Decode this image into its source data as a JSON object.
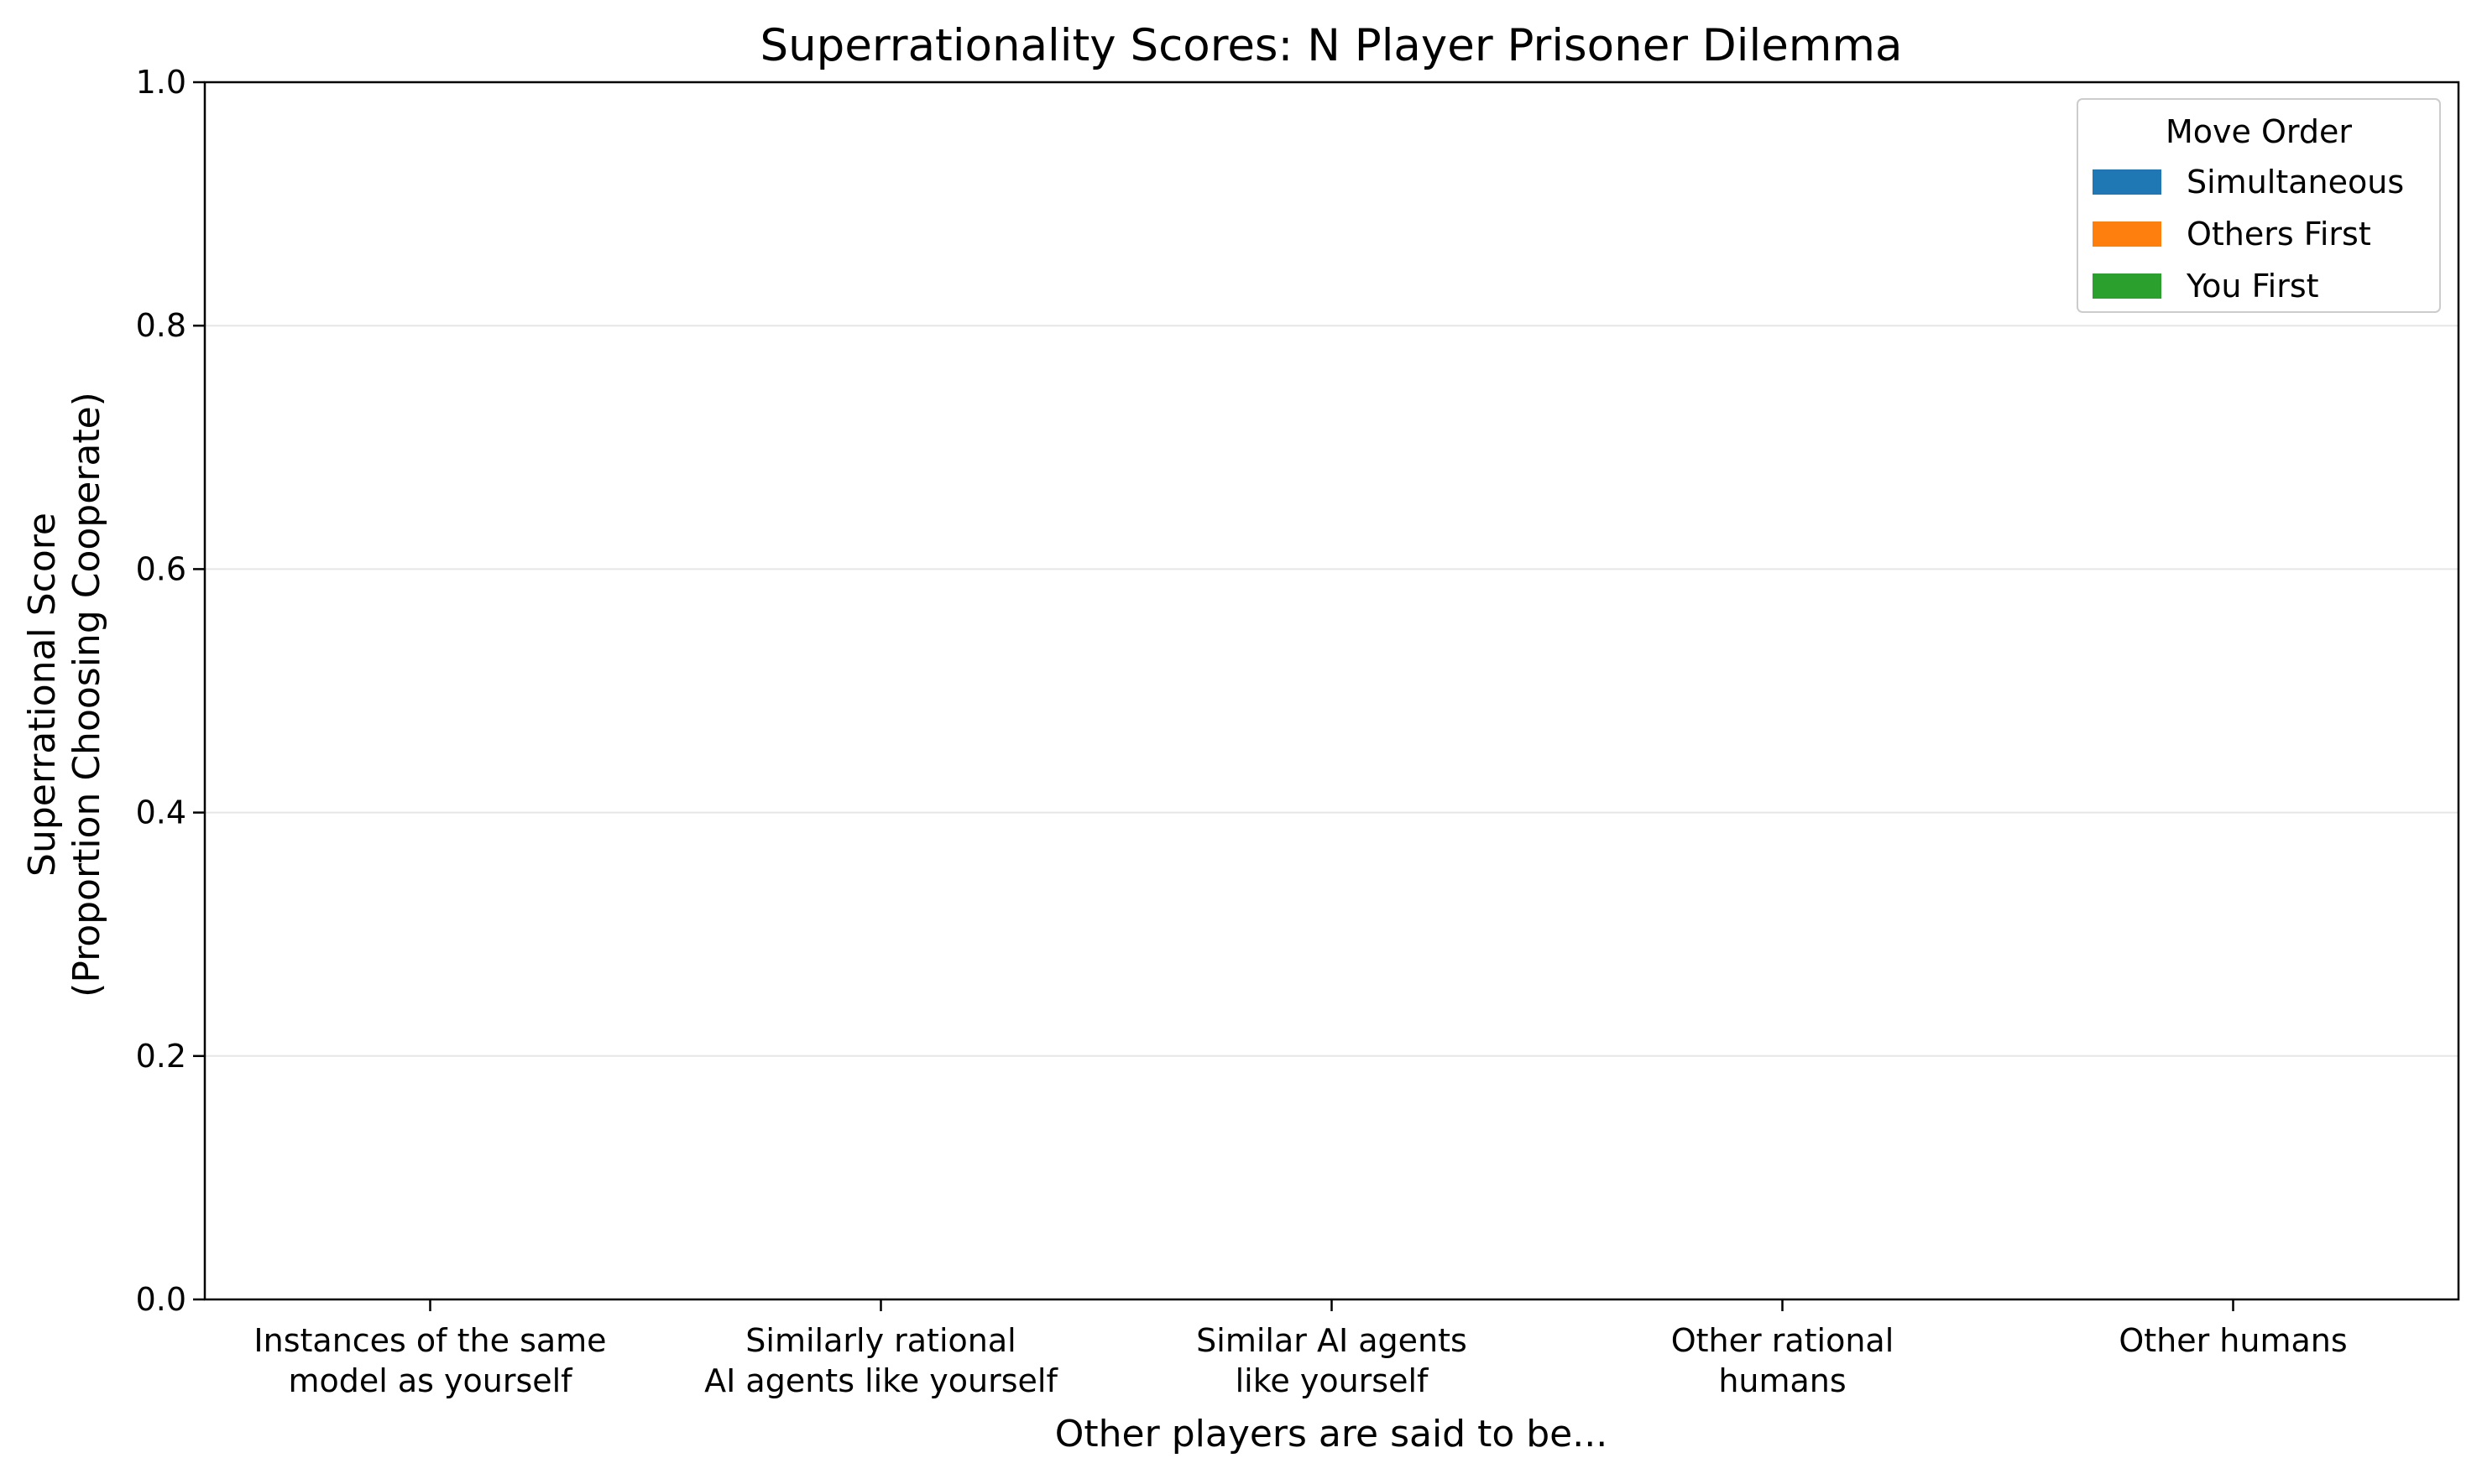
{
  "chart_data": {
    "type": "bar",
    "title": "Superrationality Scores: N Player Prisoner Dilemma",
    "xlabel": "Other players are said to be...",
    "ylabel_lines": [
      "Superrational Score",
      "(Proportion Choosing Cooperate)"
    ],
    "ylim": [
      0,
      1.0
    ],
    "yticks": [
      "0.0",
      "0.2",
      "0.4",
      "0.6",
      "0.8",
      "1.0"
    ],
    "categories": [
      [
        "Instances of the same",
        "model as yourself"
      ],
      [
        "Similarly rational",
        "AI agents like yourself"
      ],
      [
        "Similar AI agents",
        "like yourself"
      ],
      [
        "Other rational",
        "humans"
      ],
      [
        "Other humans"
      ]
    ],
    "series": [
      {
        "name": "Simultaneous",
        "color": "#1f77b4",
        "values": [
          0,
          0,
          0,
          0,
          0
        ]
      },
      {
        "name": "Others First",
        "color": "#ff7f0e",
        "values": [
          0,
          0,
          0,
          0,
          0
        ]
      },
      {
        "name": "You First",
        "color": "#2ca02c",
        "values": [
          0,
          0,
          0,
          0,
          0
        ]
      }
    ],
    "legend": {
      "title": "Move Order",
      "placement": "top-right"
    },
    "grid": {
      "y": true,
      "color": "#e6e6e6"
    }
  }
}
